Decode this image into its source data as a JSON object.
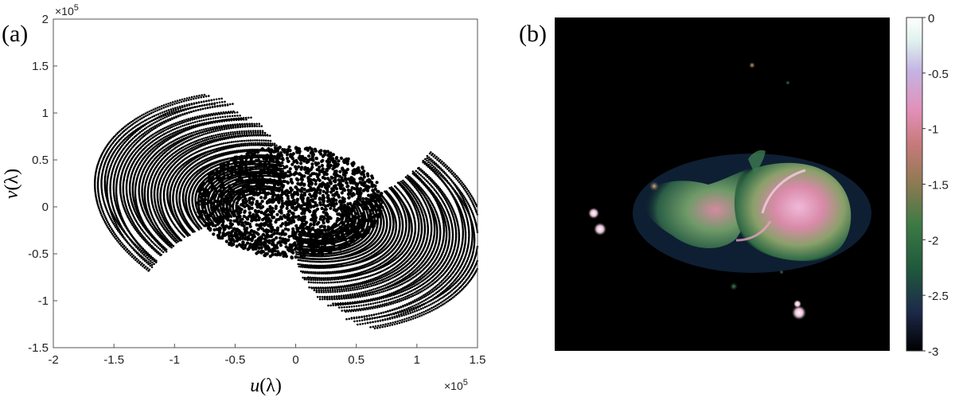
{
  "panels": {
    "a_label": "(a)",
    "b_label": "(b)"
  },
  "chart_data": [
    {
      "type": "scatter",
      "panel": "(a)",
      "xlabel_var": "u",
      "xlabel_unit": "(λ)",
      "ylabel_var": "v",
      "ylabel_unit": "(λ)",
      "xlim": [
        -200000,
        150000
      ],
      "ylim": [
        -150000,
        200000
      ],
      "x_ticks": [
        -2,
        -1.5,
        -1,
        -0.5,
        0,
        0.5,
        1,
        1.5
      ],
      "y_ticks": [
        -1.5,
        -1,
        -0.5,
        0,
        0.5,
        1,
        1.5,
        2
      ],
      "x_tick_labels": [
        "-2",
        "-1.5",
        "-1",
        "-0.5",
        "0",
        "0.5",
        "1",
        "1.5"
      ],
      "y_tick_labels": [
        "-1.5",
        "-1",
        "-0.5",
        "0",
        "0.5",
        "1",
        "1.5",
        "2"
      ],
      "x_exponent_label": "×10",
      "x_exponent_power": "5",
      "y_exponent_label": "×10",
      "y_exponent_power": "5",
      "grid": false,
      "marker_color": "#000000"
    },
    {
      "type": "heatmap",
      "panel": "(b)",
      "background": "#000000",
      "colorbar_ticks": [
        0,
        -0.5,
        -1,
        -1.5,
        -2,
        -2.5,
        -3
      ],
      "colorbar_tick_labels": [
        "0",
        "-0.5",
        "-1",
        "-1.5",
        "-2",
        "-2.5",
        "-3"
      ],
      "colorbar_range": [
        -3,
        0
      ],
      "colormap": [
        "#000000",
        "#1d2a4a",
        "#1f5a3c",
        "#3d7a45",
        "#8c7a52",
        "#c77a7a",
        "#e28fb8",
        "#c4b4e4",
        "#dff2ee",
        "#ffffff"
      ]
    }
  ]
}
